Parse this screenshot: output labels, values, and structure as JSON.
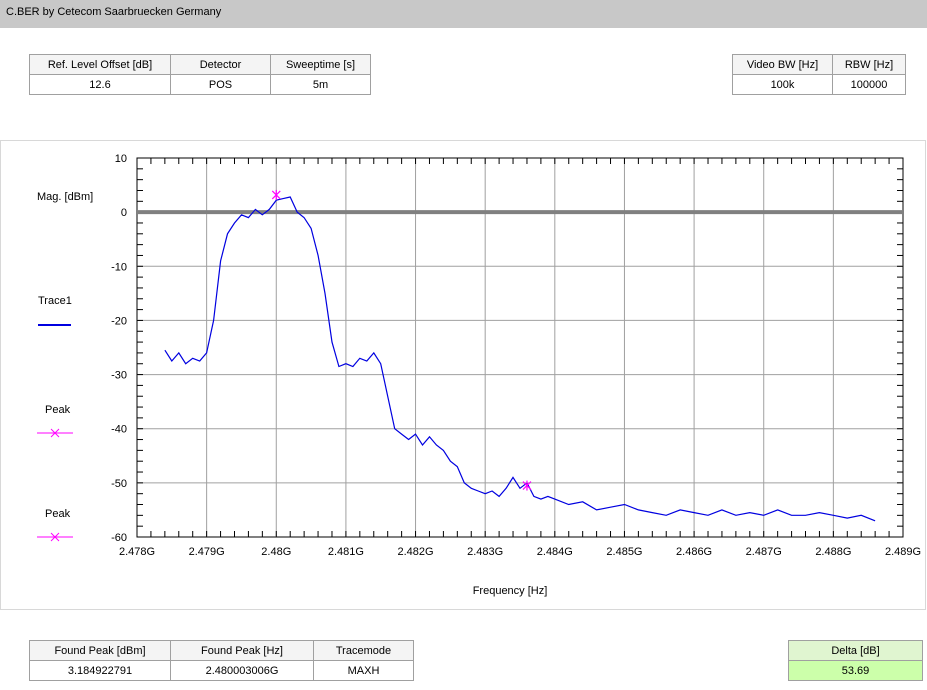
{
  "title": "C.BER by Cetecom Saarbruecken Germany",
  "top_left_table": {
    "headers": [
      "Ref. Level Offset [dB]",
      "Detector",
      "Sweeptime [s]"
    ],
    "values": [
      "12.6",
      "POS",
      "5m"
    ]
  },
  "top_right_table": {
    "headers": [
      "Video BW [Hz]",
      "RBW [Hz]"
    ],
    "values": [
      "100k",
      "100000"
    ]
  },
  "bottom_left_table": {
    "headers": [
      "Found Peak [dBm]",
      "Found Peak [Hz]",
      "Tracemode"
    ],
    "values": [
      "3.184922791",
      "2.480003006G",
      "MAXH"
    ]
  },
  "delta_table": {
    "header": "Delta [dB]",
    "value": "53.69"
  },
  "legend": {
    "trace": {
      "label": "Trace1",
      "color": "#0000e0"
    },
    "peak1": {
      "label": "Peak",
      "color": "#ff00ff"
    },
    "peak2": {
      "label": "Peak",
      "color": "#ff00ff"
    }
  },
  "chart_data": {
    "type": "line",
    "ylabel": "Mag. [dBm]",
    "xlabel": "Frequency [Hz]",
    "xlim": [
      2.478,
      2.489
    ],
    "ylim": [
      -60,
      10
    ],
    "x_ticks": [
      2.478,
      2.479,
      2.48,
      2.481,
      2.482,
      2.483,
      2.484,
      2.485,
      2.486,
      2.487,
      2.488,
      2.489
    ],
    "x_tick_labels": [
      "2.478G",
      "2.479G",
      "2.48G",
      "2.481G",
      "2.482G",
      "2.483G",
      "2.484G",
      "2.485G",
      "2.486G",
      "2.487G",
      "2.488G",
      "2.489G"
    ],
    "y_ticks": [
      10,
      0,
      -10,
      -20,
      -30,
      -40,
      -50,
      -60
    ],
    "y_tick_labels": [
      "10",
      "0",
      "-10",
      "-20",
      "-30",
      "-40",
      "-50",
      "-60"
    ],
    "reference_line": 0,
    "grid": true,
    "series": [
      {
        "name": "Trace1",
        "color": "#0000e0",
        "x": [
          2.4784,
          2.4785,
          2.4786,
          2.4787,
          2.4788,
          2.4789,
          2.479,
          2.4791,
          2.4792,
          2.4793,
          2.4794,
          2.4795,
          2.4796,
          2.4797,
          2.4798,
          2.4799,
          2.48,
          2.4801,
          2.4802,
          2.4803,
          2.4804,
          2.4805,
          2.4806,
          2.4807,
          2.4808,
          2.4809,
          2.481,
          2.4811,
          2.4812,
          2.4813,
          2.4814,
          2.4815,
          2.4816,
          2.4817,
          2.4818,
          2.4819,
          2.482,
          2.4821,
          2.4822,
          2.4823,
          2.4824,
          2.4825,
          2.4826,
          2.4827,
          2.4828,
          2.4829,
          2.483,
          2.4831,
          2.4832,
          2.4833,
          2.4834,
          2.4835,
          2.4836,
          2.4837,
          2.4838,
          2.4839,
          2.484,
          2.4842,
          2.4844,
          2.4846,
          2.4848,
          2.485,
          2.4852,
          2.4854,
          2.4856,
          2.4858,
          2.486,
          2.4862,
          2.4864,
          2.4866,
          2.4868,
          2.487,
          2.4872,
          2.4874,
          2.4876,
          2.4878,
          2.488,
          2.4882,
          2.4884,
          2.4886
        ],
        "y": [
          -25.5,
          -27.5,
          -26,
          -28,
          -27,
          -27.5,
          -26,
          -20,
          -9,
          -4,
          -2,
          -0.5,
          -1,
          0.5,
          -0.5,
          0.5,
          2.2,
          2.5,
          2.8,
          0,
          -1,
          -3,
          -8,
          -15,
          -24,
          -28.5,
          -28,
          -28.5,
          -27,
          -27.5,
          -26,
          -28,
          -34,
          -40,
          -41,
          -42,
          -41,
          -43,
          -41.5,
          -43,
          -44,
          -46,
          -47,
          -50,
          -51,
          -51.5,
          -52,
          -51.5,
          -52.5,
          -51,
          -49,
          -51,
          -50,
          -52.5,
          -53,
          -52.5,
          -53,
          -54,
          -53.5,
          -55,
          -54.5,
          -54,
          -55,
          -55.5,
          -56,
          -55,
          -55.5,
          -56,
          -55,
          -56,
          -55.5,
          -56,
          -55,
          -56,
          -56,
          -55.5,
          -56,
          -56.5,
          -56,
          -57
        ]
      }
    ],
    "markers": [
      {
        "name": "Peak",
        "x": 2.48,
        "y": 3.18,
        "color": "#ff00ff"
      },
      {
        "name": "Peak",
        "x": 2.4836,
        "y": -50.5,
        "color": "#ff00ff"
      }
    ]
  }
}
